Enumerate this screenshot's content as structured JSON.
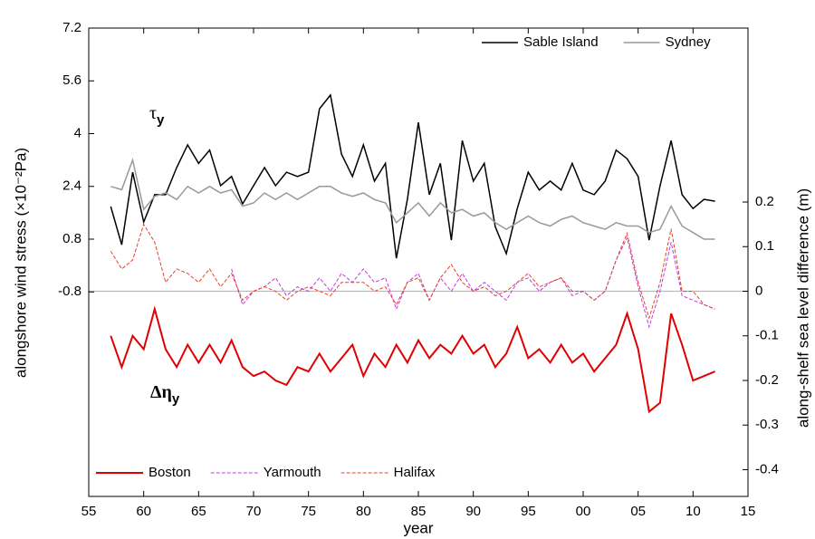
{
  "chart_data": {
    "type": "line",
    "ylabel": "alongshore wind stress (×10⁻²Pa)",
    "y2label": "along-shelf sea level difference (m)",
    "xlabel": "year",
    "xlim": [
      1955,
      2015
    ],
    "xticks": [
      {
        "value": 1955,
        "label": "55"
      },
      {
        "value": 1960,
        "label": "60"
      },
      {
        "value": 1965,
        "label": "65"
      },
      {
        "value": 1970,
        "label": "70"
      },
      {
        "value": 1975,
        "label": "75"
      },
      {
        "value": 1980,
        "label": "80"
      },
      {
        "value": 1985,
        "label": "85"
      },
      {
        "value": 1990,
        "label": "90"
      },
      {
        "value": 1995,
        "label": "95"
      },
      {
        "value": 2000,
        "label": "00"
      },
      {
        "value": 2005,
        "label": "05"
      },
      {
        "value": 2010,
        "label": "10"
      },
      {
        "value": 2015,
        "label": "15"
      }
    ],
    "ylim": [
      -7,
      7.2
    ],
    "yticks": [
      -0.8,
      0.8,
      2.4,
      4,
      5.6,
      7.2
    ],
    "y2lim": [
      -0.46,
      0.59
    ],
    "y2ticks": [
      -0.4,
      -0.3,
      -0.2,
      -0.1,
      0,
      0.1,
      0.2
    ],
    "y2_refline": 0,
    "legend": "upper right",
    "y2_legend": "lower left",
    "annotations": [
      {
        "text": "τ",
        "sub": "y",
        "color": "#000000"
      },
      {
        "text": "Δη",
        "sub": "y",
        "color": "#e00000"
      }
    ],
    "x": [
      1957,
      1958,
      1959,
      1960,
      1961,
      1962,
      1963,
      1964,
      1965,
      1966,
      1967,
      1968,
      1969,
      1970,
      1971,
      1972,
      1973,
      1974,
      1975,
      1976,
      1977,
      1978,
      1979,
      1980,
      1981,
      1982,
      1983,
      1984,
      1985,
      1986,
      1987,
      1988,
      1989,
      1990,
      1991,
      1992,
      1993,
      1994,
      1995,
      1996,
      1997,
      1998,
      1999,
      2000,
      2001,
      2002,
      2003,
      2004,
      2005,
      2006,
      2007,
      2008,
      2009,
      2010,
      2011,
      2012
    ],
    "series": [
      {
        "name": "Sable Island",
        "color": "#000000",
        "dash": false,
        "width": 1.5,
        "values": [
          1.79,
          0.63,
          2.83,
          1.32,
          2.15,
          2.15,
          2.97,
          3.66,
          3.1,
          3.5,
          2.42,
          2.7,
          1.87,
          2.42,
          2.97,
          2.42,
          2.83,
          2.7,
          2.83,
          4.75,
          5.17,
          3.38,
          2.7,
          3.66,
          2.56,
          3.1,
          0.22,
          2.01,
          4.34,
          2.15,
          3.1,
          0.77,
          3.79,
          2.56,
          3.1,
          1.18,
          0.36,
          1.73,
          2.83,
          2.29,
          2.56,
          2.29,
          3.1,
          2.29,
          2.15,
          2.56,
          3.5,
          3.24,
          2.7,
          0.77,
          2.42,
          3.79,
          2.15,
          1.73,
          2.01,
          1.95
        ]
      },
      {
        "name": "Sydney",
        "color": "#999999",
        "dash": false,
        "width": 1.5,
        "values": [
          2.4,
          2.3,
          3.2,
          1.7,
          2.1,
          2.2,
          2.0,
          2.4,
          2.2,
          2.4,
          2.2,
          2.3,
          1.8,
          1.9,
          2.2,
          2.0,
          2.2,
          2.0,
          2.2,
          2.4,
          2.4,
          2.2,
          2.1,
          2.2,
          2.0,
          1.9,
          1.3,
          1.6,
          1.9,
          1.5,
          1.9,
          1.6,
          1.7,
          1.5,
          1.6,
          1.3,
          1.1,
          1.3,
          1.5,
          1.3,
          1.2,
          1.4,
          1.5,
          1.3,
          1.2,
          1.1,
          1.3,
          1.2,
          1.2,
          1.0,
          1.1,
          1.8,
          1.2,
          1.0,
          0.8,
          0.8
        ]
      },
      {
        "name": "Boston",
        "color": "#e00000",
        "dash": false,
        "width": 2,
        "axis": "y2",
        "values": [
          -0.1,
          -0.17,
          -0.1,
          -0.13,
          -0.04,
          -0.13,
          -0.17,
          -0.12,
          -0.16,
          -0.12,
          -0.16,
          -0.11,
          -0.17,
          -0.19,
          -0.18,
          -0.2,
          -0.21,
          -0.17,
          -0.18,
          -0.14,
          -0.18,
          -0.15,
          -0.12,
          -0.19,
          -0.14,
          -0.17,
          -0.12,
          -0.16,
          -0.11,
          -0.15,
          -0.12,
          -0.14,
          -0.1,
          -0.14,
          -0.12,
          -0.17,
          -0.14,
          -0.08,
          -0.15,
          -0.13,
          -0.16,
          -0.12,
          -0.16,
          -0.14,
          -0.18,
          -0.15,
          -0.12,
          -0.05,
          -0.13,
          -0.27,
          -0.25,
          -0.05,
          -0.12,
          -0.2,
          -0.19,
          -0.18
        ]
      },
      {
        "name": "Yarmouth",
        "color": "#c03cdc",
        "dash": true,
        "width": 1,
        "axis": "y2",
        "values": [
          null,
          null,
          null,
          null,
          null,
          null,
          null,
          null,
          null,
          null,
          null,
          0.05,
          -0.03,
          0.0,
          0.01,
          0.03,
          -0.01,
          0.01,
          0.0,
          0.03,
          0.0,
          0.04,
          0.02,
          0.05,
          0.02,
          0.03,
          -0.04,
          0.02,
          0.04,
          -0.02,
          0.03,
          0.0,
          0.04,
          0.0,
          0.02,
          0.0,
          -0.02,
          0.02,
          0.03,
          0.0,
          0.02,
          0.03,
          -0.01,
          0.0,
          -0.02,
          0.0,
          0.07,
          0.12,
          0.01,
          -0.08,
          0.0,
          0.11,
          -0.01,
          -0.02,
          -0.03,
          -0.04
        ]
      },
      {
        "name": "Halifax",
        "color": "#e8402a",
        "dash": true,
        "width": 1,
        "axis": "y2",
        "values": [
          0.09,
          0.05,
          0.07,
          0.15,
          0.11,
          0.02,
          0.05,
          0.04,
          0.02,
          0.05,
          0.01,
          0.04,
          -0.02,
          0.0,
          0.01,
          0.0,
          -0.02,
          0.0,
          0.01,
          0.0,
          -0.01,
          0.02,
          0.02,
          0.02,
          0.0,
          0.01,
          -0.03,
          0.02,
          0.03,
          -0.02,
          0.03,
          0.06,
          0.02,
          0.0,
          0.01,
          -0.01,
          0.0,
          0.02,
          0.04,
          0.01,
          0.02,
          0.03,
          0.0,
          0.0,
          -0.02,
          0.0,
          0.07,
          0.13,
          0.02,
          -0.06,
          0.02,
          0.14,
          0.0,
          0.0,
          -0.03,
          -0.04
        ]
      }
    ]
  }
}
